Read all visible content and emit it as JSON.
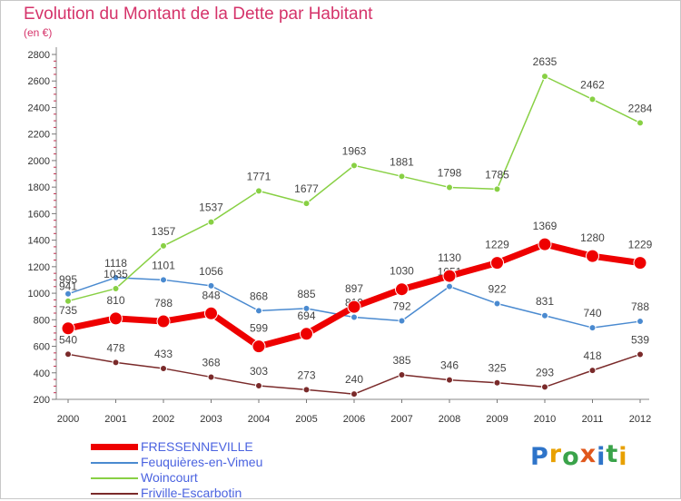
{
  "header": {
    "title": "Evolution du Montant de la Dette par Habitant",
    "subtitle": "(en €)"
  },
  "logo": {
    "letters": [
      "P",
      "r",
      "o",
      "x",
      "i",
      "t",
      "i"
    ],
    "colors": [
      "#2e74c9",
      "#e8a000",
      "#3aa34a",
      "#e0571b",
      "#2e74c9",
      "#3aa34a",
      "#e8a000"
    ]
  },
  "chart_data": {
    "type": "line",
    "title": "Evolution du Montant de la Dette par Habitant",
    "subtitle": "(en €)",
    "xlabel": "",
    "ylabel": "",
    "ylim": [
      200,
      2800
    ],
    "yticks": [
      200,
      400,
      600,
      800,
      1000,
      1200,
      1400,
      1600,
      1800,
      2000,
      2200,
      2400,
      2600,
      2800
    ],
    "categories": [
      "2000",
      "2001",
      "2002",
      "2003",
      "2004",
      "2005",
      "2006",
      "2007",
      "2008",
      "2009",
      "2010",
      "2011",
      "2012"
    ],
    "grid": false,
    "legend_position": "bottom-left",
    "series": [
      {
        "name": "Friville-Escarbotin",
        "color": "#7a2a2a",
        "values": [
          540,
          478,
          433,
          368,
          303,
          273,
          240,
          385,
          346,
          325,
          293,
          418,
          539
        ]
      },
      {
        "name": "Feuquières-en-Vimeu",
        "color": "#4a8ad0",
        "values": [
          995,
          1118,
          1101,
          1056,
          868,
          885,
          819,
          792,
          1051,
          922,
          831,
          740,
          788
        ]
      },
      {
        "name": "Woincourt",
        "color": "#88d044",
        "values": [
          941,
          1035,
          1357,
          1537,
          1771,
          1677,
          1963,
          1881,
          1798,
          1785,
          2635,
          2462,
          2284
        ]
      },
      {
        "name": "FRESSENNEVILLE",
        "color": "#ee0000",
        "values": [
          735,
          810,
          788,
          848,
          599,
          694,
          897,
          1030,
          1130,
          1229,
          1369,
          1280,
          1229
        ]
      }
    ],
    "legend_order": [
      "FRESSENNEVILLE",
      "Feuquières-en-Vimeu",
      "Woincourt",
      "Friville-Escarbotin"
    ]
  }
}
